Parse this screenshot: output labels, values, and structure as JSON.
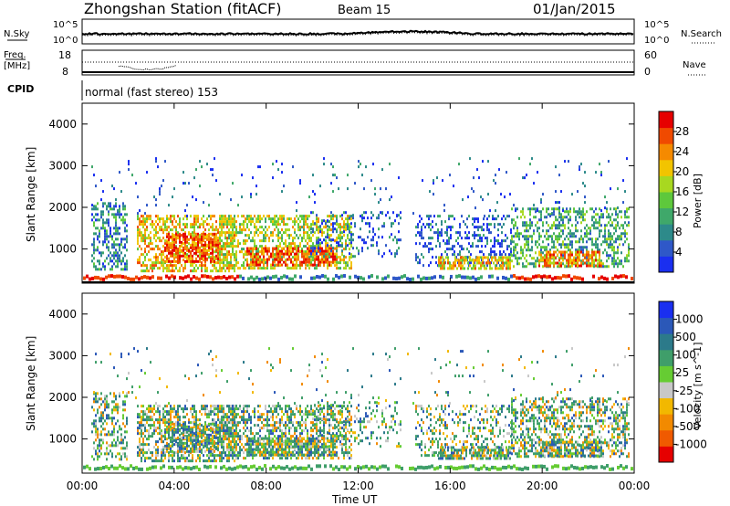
{
  "header": {
    "station": "Zhongshan Station (fitACF)",
    "beam": "Beam 15",
    "date": "01/Jan/2015"
  },
  "noise_panel": {
    "left_label": "N.Sky",
    "right_label": "N.Search",
    "ticks": [
      "10^5",
      "10^0"
    ],
    "right_ticks": [
      "10^5",
      "10^0"
    ]
  },
  "freq_panel": {
    "left_label_1": "Freq.",
    "left_label_2": "[MHz]",
    "left_ticks": [
      "18",
      "8"
    ],
    "right_label": "Nave",
    "right_ticks": [
      "60",
      "0"
    ]
  },
  "cpid_panel": {
    "label": "CPID",
    "text": "normal (fast stereo) 153"
  },
  "colors": {
    "power": [
      "#1a2ff0",
      "#2f58c8",
      "#2d8a8a",
      "#3fa86a",
      "#5ec83c",
      "#a8d820",
      "#f2c400",
      "#f58a00",
      "#f04a00",
      "#e60000"
    ],
    "velocity": [
      "#e60000",
      "#f05a00",
      "#f28a00",
      "#f2b800",
      "#c8c8c8",
      "#66cc33",
      "#3f9e6a",
      "#2c7a8a",
      "#2b58b8",
      "#1a2ff0"
    ]
  },
  "chart_data": [
    {
      "type": "heatmap",
      "name": "power",
      "ylabel": "Slant Range [km]",
      "yticks": [
        "1000",
        "2000",
        "3000",
        "4000"
      ],
      "ylim": [
        180,
        4500
      ],
      "xlim": [
        "00:00",
        "24:00"
      ],
      "colorbar_label": "Power [dB]",
      "colorbar_ticks": [
        "4",
        "8",
        "12",
        "16",
        "20",
        "24",
        "28"
      ],
      "colorbar_range": [
        0,
        30
      ]
    },
    {
      "type": "heatmap",
      "name": "velocity",
      "ylabel": "Slant Range [km]",
      "yticks": [
        "1000",
        "2000",
        "3000",
        "4000"
      ],
      "ylim": [
        180,
        4500
      ],
      "xlim": [
        "00:00",
        "24:00"
      ],
      "colorbar_label": "Velocity [m s^-1]",
      "colorbar_ticks": [
        "-1000",
        "-500",
        "-100",
        "-25",
        "25",
        "100",
        "500",
        "1000"
      ]
    }
  ],
  "xaxis": {
    "ticks": [
      "00:00",
      "04:00",
      "08:00",
      "12:00",
      "16:00",
      "20:00",
      "00:00"
    ],
    "label": "Time UT"
  }
}
